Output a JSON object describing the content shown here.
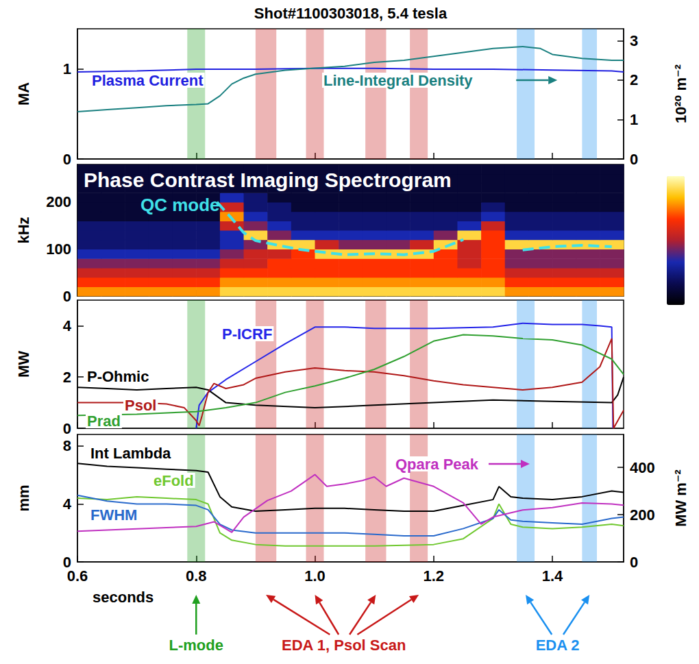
{
  "chart_data": [
    {
      "type": "line",
      "title": "Shot#1100303018, 5.4 tesla",
      "xlim": [
        0.6,
        1.52
      ],
      "xticks": [
        0.6,
        0.8,
        {
          "value": 1,
          "label": "1.0"
        },
        1.2,
        1.4
      ],
      "tick_labels": "y",
      "y_label": "MA",
      "ylim": [
        0,
        1.45
      ],
      "yticks": [
        0,
        1
      ],
      "y2_label": "10²⁰ m⁻²",
      "y2lim": [
        0,
        3.3
      ],
      "y2ticks": [
        0,
        1,
        2,
        3
      ],
      "bands": [
        {
          "color": "#20a020",
          "ranges": [
            [
              0.785,
              0.815
            ]
          ]
        },
        {
          "color": "#c81818",
          "ranges": [
            [
              0.9,
              0.935
            ],
            [
              0.985,
              1.015
            ],
            [
              1.085,
              1.12
            ],
            [
              1.16,
              1.19
            ]
          ]
        },
        {
          "color": "#1a90f0",
          "ranges": [
            [
              1.34,
              1.37
            ],
            [
              1.45,
              1.475
            ]
          ]
        }
      ],
      "series": [
        {
          "name": "Plasma Current",
          "color": "#2020e0",
          "x": [
            0.6,
            0.7,
            0.8,
            0.9,
            1.0,
            1.1,
            1.2,
            1.3,
            1.4,
            1.5,
            1.52
          ],
          "values": [
            0.97,
            0.98,
            1.0,
            1.0,
            1.01,
            1.01,
            1.0,
            1.0,
            0.99,
            0.98,
            0.97
          ]
        },
        {
          "name": "Line-Integral Density",
          "color": "#1a8080",
          "axis": "y2",
          "x": [
            0.6,
            0.65,
            0.7,
            0.75,
            0.8,
            0.82,
            0.84,
            0.86,
            0.88,
            0.9,
            0.95,
            1.0,
            1.05,
            1.1,
            1.15,
            1.2,
            1.25,
            1.3,
            1.35,
            1.38,
            1.4,
            1.45,
            1.5,
            1.52
          ],
          "values": [
            1.2,
            1.25,
            1.3,
            1.35,
            1.38,
            1.4,
            1.6,
            1.9,
            2.05,
            2.15,
            2.25,
            2.3,
            2.35,
            2.45,
            2.5,
            2.6,
            2.7,
            2.8,
            2.85,
            2.8,
            2.65,
            2.55,
            2.5,
            2.5
          ]
        }
      ]
    },
    {
      "type": "heatmap",
      "title": "Phase Contrast Imaging Spectrogram",
      "xlim": [
        0.6,
        1.52
      ],
      "xticks": [
        0.6,
        0.8,
        {
          "value": 1,
          "label": "1.0"
        },
        1.2,
        1.4
      ],
      "tick_labels": "y",
      "y_label": "kHz",
      "ylim": [
        0,
        280
      ],
      "yticks": [
        0,
        100,
        200
      ],
      "x_edges": [
        0.6,
        0.64,
        0.68,
        0.72,
        0.76,
        0.8,
        0.84,
        0.88,
        0.92,
        0.96,
        1.0,
        1.04,
        1.08,
        1.12,
        1.16,
        1.2,
        1.24,
        1.28,
        1.32,
        1.36,
        1.4,
        1.44,
        1.48,
        1.52
      ],
      "y_edges": [
        0,
        20,
        40,
        60,
        80,
        100,
        120,
        140,
        160,
        180,
        200,
        220,
        240,
        260,
        280
      ],
      "z": [
        [
          7,
          7,
          7,
          7,
          7,
          7,
          8,
          8,
          8,
          8,
          8,
          8,
          8,
          8,
          8,
          8,
          8,
          8,
          7,
          7,
          7,
          7,
          7
        ],
        [
          6,
          6,
          6,
          6,
          6,
          6,
          7,
          7,
          7,
          7,
          7,
          7,
          7,
          7,
          7,
          7,
          7,
          7,
          6,
          6,
          6,
          6,
          6
        ],
        [
          5,
          5,
          5,
          5,
          5,
          5,
          6,
          6,
          6,
          6,
          6,
          6,
          6,
          6,
          6,
          6,
          6,
          6,
          5,
          5,
          5,
          5,
          5
        ],
        [
          4,
          4,
          4,
          4,
          4,
          4,
          5,
          5,
          6,
          6,
          6,
          6,
          6,
          6,
          6,
          6,
          5,
          6,
          4,
          4,
          4,
          4,
          4
        ],
        [
          3,
          3,
          3,
          3,
          3,
          3,
          4,
          5,
          5,
          6,
          8,
          8,
          8,
          8,
          8,
          6,
          5,
          6,
          4,
          4,
          4,
          4,
          4
        ],
        [
          2,
          2,
          2,
          2,
          2,
          2,
          3,
          4,
          8,
          8,
          5,
          4,
          4,
          4,
          5,
          8,
          5,
          6,
          8,
          8,
          8,
          8,
          8
        ],
        [
          2,
          2,
          2,
          2,
          2,
          2,
          3,
          8,
          4,
          3,
          3,
          3,
          3,
          3,
          3,
          4,
          8,
          6,
          3,
          3,
          3,
          3,
          3
        ],
        [
          2,
          2,
          2,
          2,
          2,
          2,
          5,
          4,
          3,
          2,
          2,
          2,
          2,
          2,
          2,
          2,
          3,
          5,
          2,
          2,
          2,
          2,
          2
        ],
        [
          1,
          1,
          1,
          1,
          1,
          1,
          7,
          3,
          2,
          2,
          2,
          2,
          2,
          2,
          2,
          2,
          2,
          3,
          2,
          2,
          2,
          2,
          2
        ],
        [
          1,
          1,
          1,
          1,
          1,
          1,
          5,
          2,
          2,
          1,
          1,
          1,
          1,
          1,
          1,
          1,
          1,
          2,
          1,
          1,
          1,
          1,
          1
        ],
        [
          1,
          1,
          1,
          1,
          1,
          1,
          3,
          2,
          1,
          1,
          1,
          1,
          1,
          1,
          1,
          1,
          1,
          1,
          1,
          1,
          1,
          1,
          1
        ],
        [
          1,
          1,
          1,
          1,
          1,
          1,
          1,
          1,
          1,
          1,
          1,
          1,
          1,
          1,
          1,
          1,
          1,
          1,
          1,
          1,
          1,
          1,
          1
        ],
        [
          1,
          1,
          1,
          1,
          1,
          1,
          1,
          1,
          1,
          1,
          1,
          1,
          1,
          1,
          1,
          1,
          1,
          1,
          1,
          1,
          1,
          1,
          1
        ],
        [
          1,
          1,
          1,
          1,
          1,
          1,
          1,
          1,
          1,
          1,
          1,
          1,
          1,
          1,
          1,
          1,
          1,
          1,
          1,
          1,
          1,
          1,
          1
        ]
      ],
      "colorbar_range": [
        0,
        9
      ],
      "series": [
        {
          "name": "QC mode",
          "type": "line",
          "line_style": "dashed",
          "color": "#40e0e8",
          "x": [
            0.835,
            0.86,
            0.88,
            0.9,
            0.93,
            0.97,
            1.0,
            1.05,
            1.1,
            1.15,
            1.2,
            1.25,
            1.3,
            1.35,
            1.4,
            1.45,
            1.5
          ],
          "values": [
            200,
            165,
            135,
            118,
            110,
            100,
            95,
            88,
            90,
            88,
            95,
            120,
            null,
            98,
            105,
            108,
            105
          ]
        }
      ]
    },
    {
      "type": "line",
      "xlim": [
        0.6,
        1.52
      ],
      "xticks": [
        0.6,
        0.8,
        {
          "value": 1,
          "label": "1.0"
        },
        1.2,
        1.4
      ],
      "tick_labels": "y",
      "y_label": "MW",
      "ylim": [
        0,
        5
      ],
      "yticks": [
        0,
        2,
        4
      ],
      "bands": [
        {
          "color": "#20a020",
          "ranges": [
            [
              0.785,
              0.815
            ]
          ]
        },
        {
          "color": "#c81818",
          "ranges": [
            [
              0.9,
              0.935
            ],
            [
              0.985,
              1.015
            ],
            [
              1.085,
              1.12
            ],
            [
              1.16,
              1.19
            ]
          ]
        },
        {
          "color": "#1a90f0",
          "ranges": [
            [
              1.34,
              1.37
            ],
            [
              1.45,
              1.475
            ]
          ]
        }
      ],
      "series": [
        {
          "name": "P-ICRF",
          "color": "#2424e8",
          "x": [
            0.8,
            0.805,
            0.82,
            0.85,
            0.9,
            0.95,
            1.0,
            1.05,
            1.1,
            1.2,
            1.3,
            1.35,
            1.4,
            1.45,
            1.48,
            1.5,
            1.502
          ],
          "values": [
            0,
            0.9,
            1.4,
            1.9,
            2.6,
            3.3,
            3.95,
            3.95,
            3.9,
            3.9,
            3.95,
            4.1,
            4.05,
            4.05,
            4.0,
            3.95,
            0
          ]
        },
        {
          "name": "P-Ohmic",
          "color": "#000000",
          "x": [
            0.6,
            0.65,
            0.7,
            0.75,
            0.8,
            0.82,
            0.85,
            0.9,
            1.0,
            1.1,
            1.2,
            1.3,
            1.4,
            1.5,
            1.51,
            1.52
          ],
          "values": [
            1.6,
            1.55,
            1.5,
            1.55,
            1.6,
            1.5,
            1.0,
            0.9,
            0.8,
            0.9,
            1.0,
            1.1,
            1.05,
            1.0,
            1.3,
            2.0
          ]
        },
        {
          "name": "Psol",
          "color": "#b01818",
          "x": [
            0.6,
            0.65,
            0.7,
            0.75,
            0.78,
            0.8,
            0.805,
            0.81,
            0.82,
            0.83,
            0.85,
            0.88,
            0.9,
            0.95,
            1.0,
            1.05,
            1.1,
            1.15,
            1.2,
            1.25,
            1.3,
            1.35,
            1.4,
            1.45,
            1.48,
            1.5,
            1.503,
            1.52
          ],
          "values": [
            1.0,
            1.0,
            1.0,
            0.95,
            0.8,
            0.3,
            0.1,
            0.5,
            1.4,
            1.75,
            1.55,
            1.7,
            1.95,
            2.2,
            2.35,
            2.25,
            2.2,
            2.05,
            1.85,
            1.7,
            1.6,
            1.5,
            1.6,
            1.8,
            2.4,
            3.5,
            0,
            0.7
          ]
        },
        {
          "name": "Prad",
          "color": "#30a030",
          "x": [
            0.6,
            0.7,
            0.8,
            0.85,
            0.9,
            0.95,
            1.0,
            1.05,
            1.1,
            1.15,
            1.2,
            1.25,
            1.3,
            1.35,
            1.4,
            1.45,
            1.5,
            1.52
          ],
          "values": [
            0.5,
            0.55,
            0.65,
            0.8,
            1.0,
            1.4,
            1.65,
            1.95,
            2.3,
            2.8,
            3.4,
            3.65,
            3.6,
            3.5,
            3.45,
            3.25,
            2.7,
            2.1
          ]
        }
      ]
    },
    {
      "type": "line",
      "xlim": [
        0.6,
        1.52
      ],
      "xticks": [
        0.6,
        0.8,
        {
          "value": 1,
          "label": "1.0"
        },
        1.2,
        1.4
      ],
      "x_label": "seconds",
      "y_label": "mm",
      "ylim": [
        0,
        8.8
      ],
      "yticks": [
        0,
        4,
        8
      ],
      "y2_label": "MW m⁻²",
      "y2lim": [
        0,
        540
      ],
      "y2ticks": [
        0,
        200,
        400
      ],
      "bands": [
        {
          "label": "L-mode",
          "color": "#20a020",
          "ranges": [
            [
              0.785,
              0.815
            ]
          ]
        },
        {
          "label": "EDA 1, Psol Scan",
          "color": "#c81818",
          "ranges": [
            [
              0.9,
              0.935
            ],
            [
              0.985,
              1.015
            ],
            [
              1.085,
              1.12
            ],
            [
              1.16,
              1.19
            ]
          ]
        },
        {
          "label": "EDA 2",
          "color": "#1a90f0",
          "ranges": [
            [
              1.34,
              1.37
            ],
            [
              1.45,
              1.475
            ]
          ]
        }
      ],
      "series": [
        {
          "name": "Int Lambda",
          "color": "#000000",
          "x": [
            0.6,
            0.65,
            0.7,
            0.75,
            0.8,
            0.82,
            0.84,
            0.86,
            0.9,
            0.95,
            1.0,
            1.05,
            1.1,
            1.15,
            1.2,
            1.25,
            1.3,
            1.31,
            1.33,
            1.35,
            1.4,
            1.45,
            1.5,
            1.52
          ],
          "values": [
            6.8,
            6.6,
            6.5,
            6.4,
            6.3,
            6.2,
            4.5,
            3.8,
            3.5,
            3.6,
            3.7,
            3.7,
            3.6,
            3.5,
            3.5,
            3.9,
            4.3,
            5.2,
            4.5,
            4.4,
            4.3,
            4.5,
            4.9,
            4.8
          ]
        },
        {
          "name": "eFold",
          "color": "#70c830",
          "x": [
            0.6,
            0.65,
            0.7,
            0.75,
            0.8,
            0.82,
            0.84,
            0.86,
            0.9,
            0.95,
            1.0,
            1.05,
            1.1,
            1.15,
            1.2,
            1.25,
            1.3,
            1.31,
            1.33,
            1.35,
            1.4,
            1.45,
            1.5,
            1.52
          ],
          "values": [
            4.4,
            4.3,
            4.5,
            4.4,
            4.3,
            4.0,
            2.0,
            1.5,
            1.2,
            1.1,
            1.1,
            1.1,
            1.1,
            1.15,
            1.2,
            1.6,
            3.0,
            4.0,
            2.6,
            2.4,
            2.3,
            2.4,
            2.6,
            2.5
          ]
        },
        {
          "name": "FWHM",
          "color": "#2a6acc",
          "x": [
            0.6,
            0.65,
            0.7,
            0.75,
            0.8,
            0.82,
            0.84,
            0.86,
            0.9,
            0.95,
            1.0,
            1.05,
            1.1,
            1.15,
            1.2,
            1.25,
            1.3,
            1.31,
            1.33,
            1.35,
            1.4,
            1.45,
            1.5,
            1.52
          ],
          "values": [
            4.6,
            4.2,
            4.0,
            4.0,
            3.9,
            3.6,
            2.6,
            2.2,
            2.0,
            2.0,
            2.0,
            2.0,
            1.9,
            1.8,
            1.8,
            2.3,
            3.0,
            3.6,
            2.9,
            2.8,
            2.7,
            2.6,
            3.0,
            3.1
          ]
        },
        {
          "name": "Qpara Peak",
          "color": "#c030c0",
          "axis": "y2",
          "x": [
            0.6,
            0.65,
            0.7,
            0.75,
            0.8,
            0.83,
            0.86,
            0.88,
            0.92,
            0.96,
            1.0,
            1.02,
            1.05,
            1.08,
            1.1,
            1.12,
            1.15,
            1.2,
            1.25,
            1.28,
            1.3,
            1.35,
            1.4,
            1.45,
            1.5,
            1.52
          ],
          "values": [
            130,
            135,
            140,
            145,
            150,
            170,
            125,
            190,
            260,
            300,
            370,
            320,
            330,
            345,
            360,
            320,
            355,
            320,
            250,
            160,
            190,
            220,
            230,
            250,
            245,
            240
          ]
        }
      ]
    }
  ]
}
